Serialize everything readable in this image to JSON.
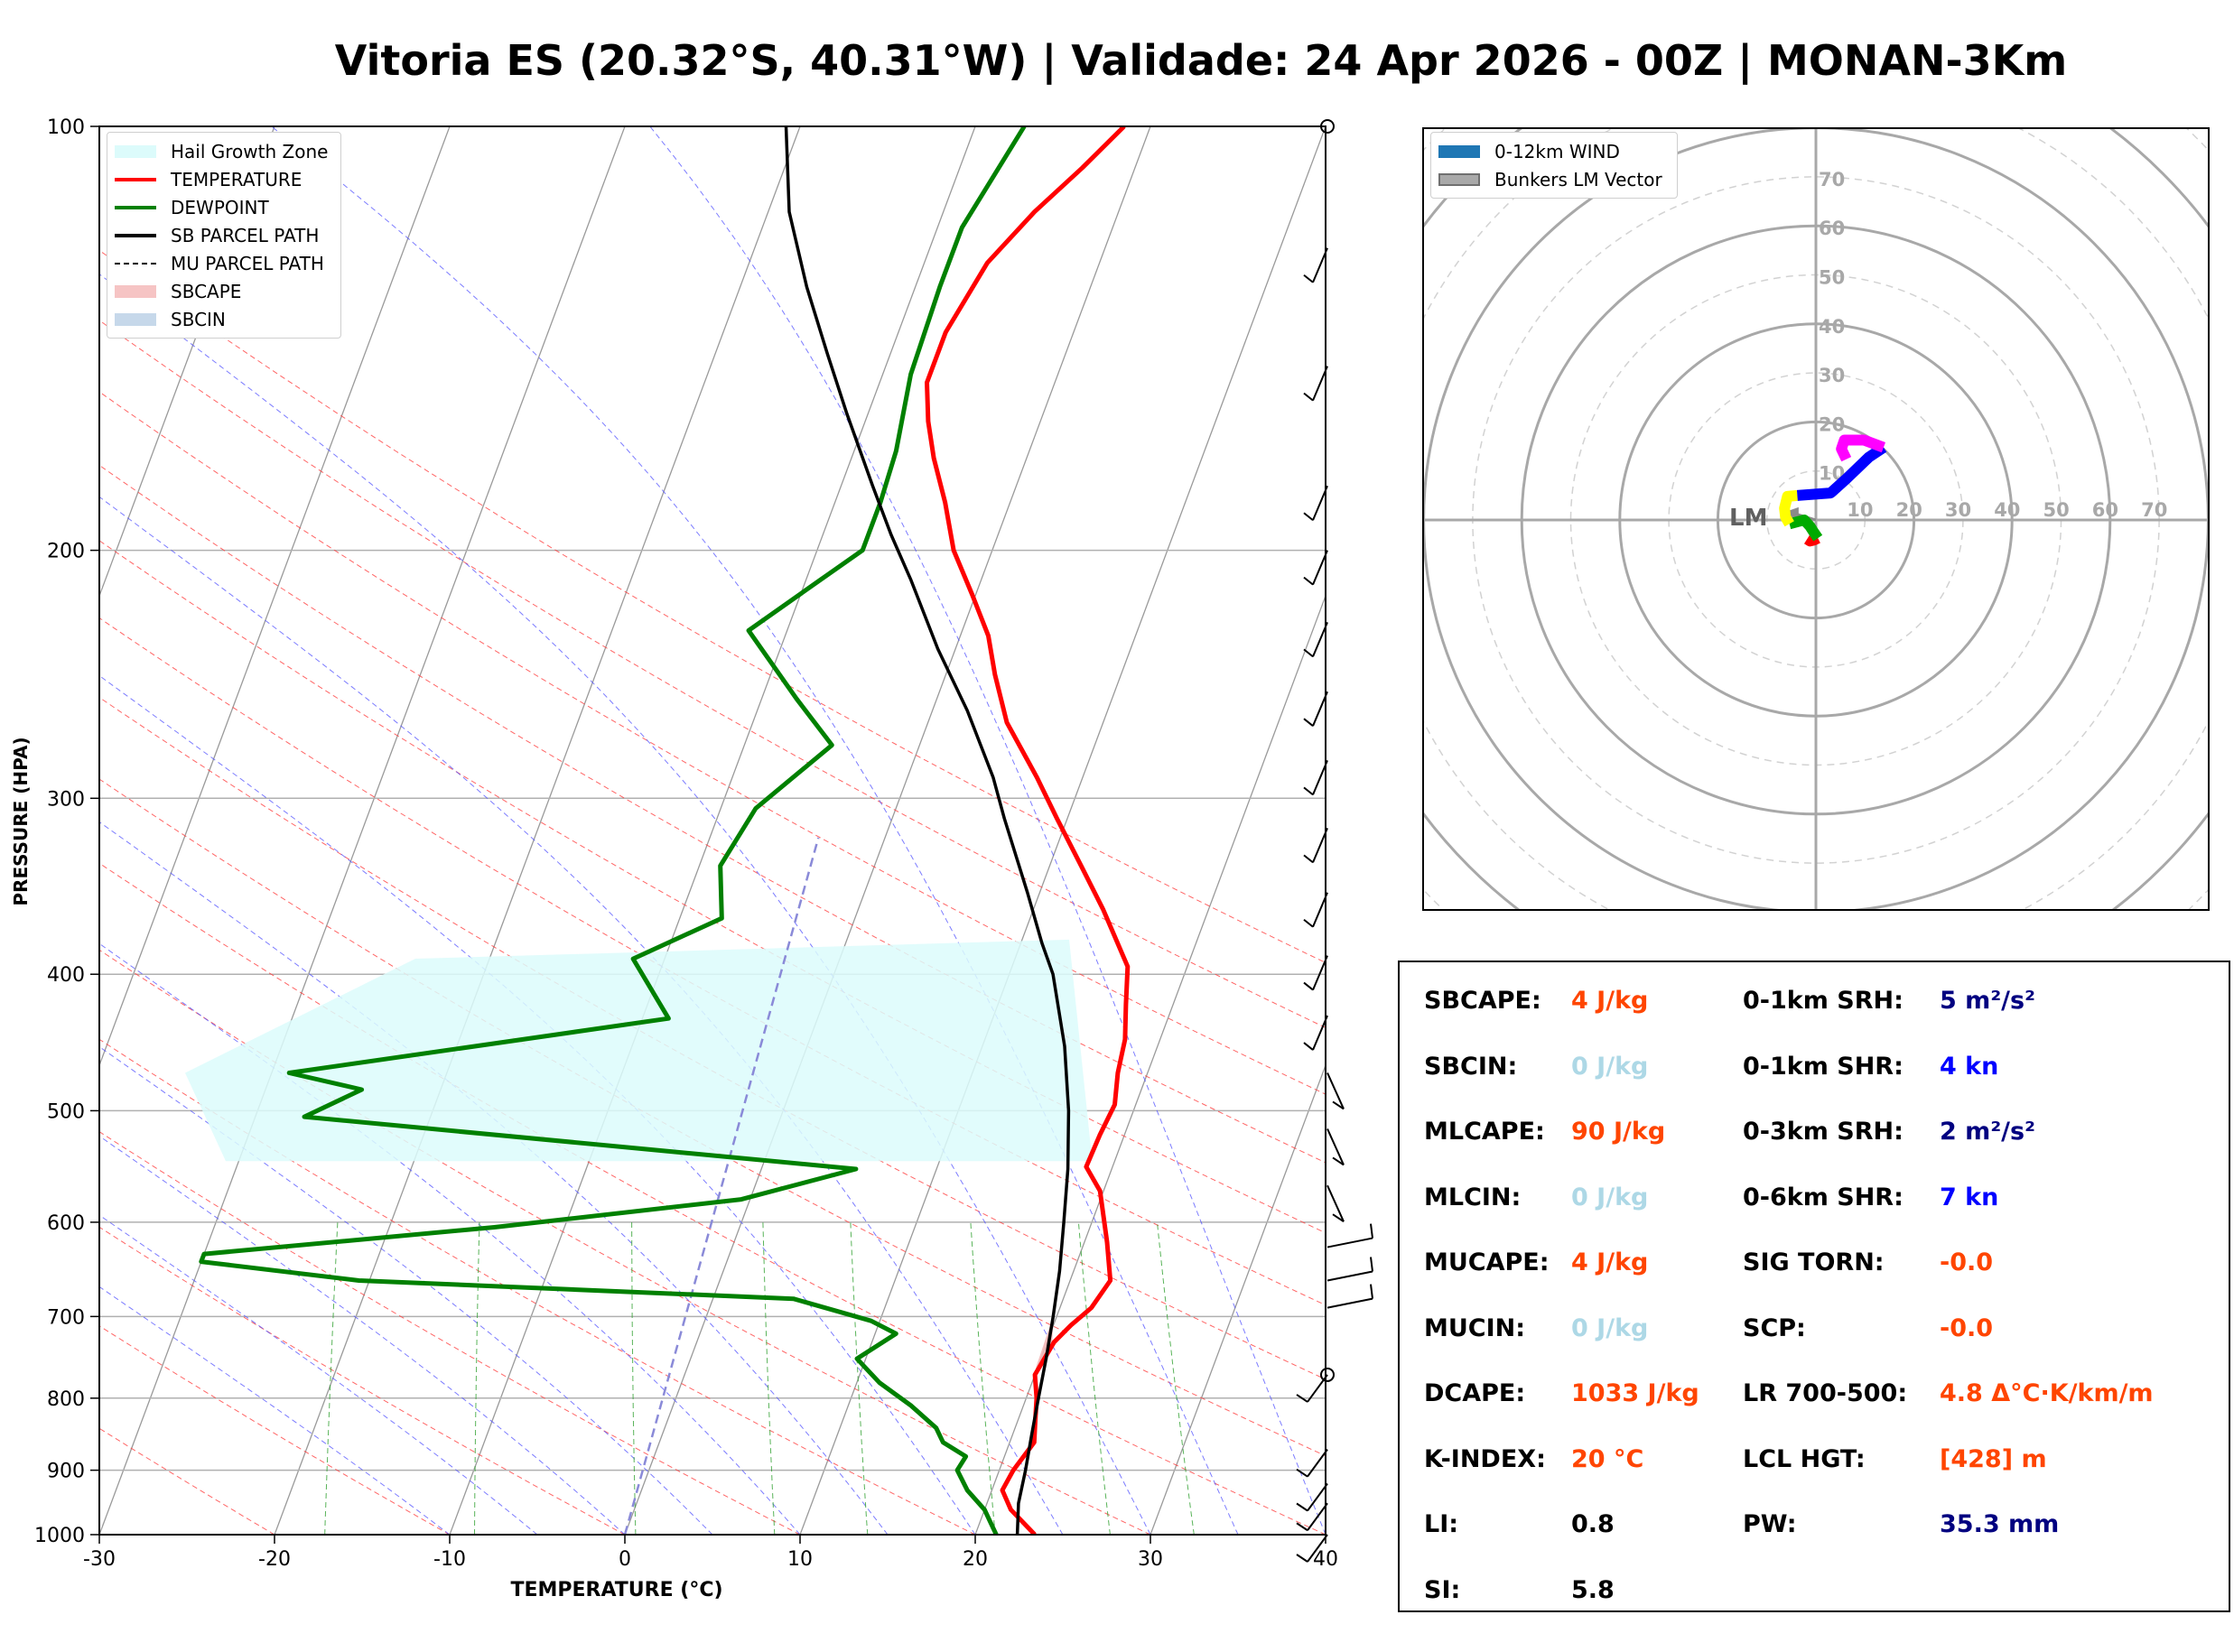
{
  "title": "Vitoria ES (20.32°S, 40.31°W) | Validade: 24 Apr 2026 - 00Z | MONAN-3Km",
  "skewt": {
    "xlabel": "TEMPERATURE (°C)",
    "ylabel": "PRESSURE (HPA)",
    "x_ticks": [
      -30,
      -20,
      -10,
      0,
      10,
      20,
      30,
      40
    ],
    "p_ticks": [
      100,
      200,
      300,
      400,
      500,
      600,
      700,
      800,
      900,
      1000
    ]
  },
  "skewt_legend": [
    {
      "label": "Hail Growth Zone",
      "color": "#dcfbfb",
      "kind": "patch"
    },
    {
      "label": "TEMPERATURE",
      "color": "#ff0000",
      "kind": "line"
    },
    {
      "label": "DEWPOINT",
      "color": "#008000",
      "kind": "line"
    },
    {
      "label": "SB PARCEL PATH",
      "color": "#000000",
      "kind": "line"
    },
    {
      "label": "MU PARCEL PATH",
      "color": "#000000",
      "kind": "dashed"
    },
    {
      "label": "SBCAPE",
      "color": "#f6c4c4",
      "kind": "patch"
    },
    {
      "label": "SBCIN",
      "color": "#c6d8ea",
      "kind": "patch"
    }
  ],
  "hodo_legend": [
    {
      "label": "0-12km WIND",
      "color": "#1f77b4",
      "kind": "patch"
    },
    {
      "label": "Bunkers LM Vector",
      "color": "#a9a9a9",
      "kind": "patch"
    }
  ],
  "hodograph": {
    "ring_labels": [
      "10",
      "20",
      "30",
      "40",
      "50",
      "60",
      "70"
    ],
    "lm_label": "LM"
  },
  "chart_data": {
    "type": "line",
    "title": "Vitoria ES (20.32°S, 40.31°W) | Validade: 24 Apr 2026 - 00Z | MONAN-3Km",
    "xlabel": "TEMPERATURE (°C)",
    "ylabel": "PRESSURE (HPA)",
    "xlim": [
      -30,
      40
    ],
    "ylim": [
      1000,
      100
    ],
    "y_scale": "log",
    "series": [
      {
        "name": "TEMPERATURE",
        "color": "#ff0000",
        "points": [
          [
            23.4,
            1000
          ],
          [
            21.5,
            960
          ],
          [
            20.6,
            930
          ],
          [
            20.8,
            900
          ],
          [
            21.4,
            860
          ],
          [
            21.0,
            830
          ],
          [
            20.6,
            800
          ],
          [
            20.0,
            770
          ],
          [
            20.4,
            730
          ],
          [
            21.0,
            710
          ],
          [
            21.8,
            690
          ],
          [
            22.3,
            660
          ],
          [
            21.3,
            620
          ],
          [
            19.8,
            570
          ],
          [
            18.5,
            548
          ],
          [
            18.6,
            520
          ],
          [
            18.8,
            495
          ],
          [
            18.3,
            470
          ],
          [
            18.0,
            445
          ],
          [
            17.3,
            420
          ],
          [
            16.6,
            395
          ],
          [
            14.0,
            360
          ],
          [
            11.8,
            335
          ],
          [
            9.4,
            310
          ],
          [
            7.4,
            290
          ],
          [
            4.5,
            265
          ],
          [
            2.8,
            245
          ],
          [
            1.6,
            230
          ],
          [
            -0.2,
            215
          ],
          [
            -2.2,
            200
          ],
          [
            -3.7,
            185
          ],
          [
            -5.3,
            172
          ],
          [
            -6.4,
            162
          ],
          [
            -7.3,
            152
          ],
          [
            -7.3,
            140
          ],
          [
            -6.4,
            125
          ],
          [
            -4.8,
            115
          ],
          [
            -3.0,
            107
          ],
          [
            -1.5,
            100
          ]
        ]
      },
      {
        "name": "DEWPOINT",
        "color": "#008000",
        "points": [
          [
            21.2,
            1000
          ],
          [
            20.0,
            960
          ],
          [
            18.6,
            930
          ],
          [
            17.6,
            900
          ],
          [
            17.8,
            880
          ],
          [
            16.2,
            860
          ],
          [
            15.5,
            840
          ],
          [
            13.6,
            810
          ],
          [
            11.3,
            780
          ],
          [
            9.5,
            750
          ],
          [
            11.2,
            720
          ],
          [
            9.5,
            705
          ],
          [
            4.6,
            680
          ],
          [
            -20.6,
            660
          ],
          [
            -30.0,
            640
          ],
          [
            -30.0,
            632
          ],
          [
            -14.0,
            605
          ],
          [
            -0.5,
            578
          ],
          [
            5.4,
            550
          ],
          [
            -27.2,
            505
          ],
          [
            -24.5,
            483
          ],
          [
            -29.0,
            470
          ],
          [
            -8.5,
            430
          ],
          [
            -11.8,
            390
          ],
          [
            -7.6,
            365
          ],
          [
            -8.8,
            335
          ],
          [
            -8.0,
            305
          ],
          [
            -5.0,
            275
          ],
          [
            -8.0,
            255
          ],
          [
            -12.2,
            228
          ],
          [
            -9.2,
            210
          ],
          [
            -7.4,
            200
          ],
          [
            -7.4,
            185
          ],
          [
            -7.6,
            170
          ],
          [
            -8.4,
            150
          ],
          [
            -8.6,
            130
          ],
          [
            -8.6,
            118
          ],
          [
            -7.2,
            100
          ]
        ]
      },
      {
        "name": "SB PARCEL PATH",
        "color": "#000000",
        "points": [
          [
            22.4,
            1000
          ],
          [
            21.8,
            950
          ],
          [
            21.5,
            900
          ],
          [
            21.1,
            850
          ],
          [
            20.7,
            800
          ],
          [
            20.3,
            750
          ],
          [
            19.8,
            700
          ],
          [
            19.2,
            650
          ],
          [
            18.4,
            600
          ],
          [
            17.5,
            550
          ],
          [
            16.3,
            500
          ],
          [
            14.7,
            450
          ],
          [
            12.5,
            400
          ],
          [
            11.2,
            380
          ],
          [
            9.3,
            350
          ],
          [
            6.4,
            310
          ],
          [
            4.9,
            290
          ],
          [
            2.0,
            260
          ],
          [
            -1.0,
            235
          ],
          [
            -4.0,
            210
          ],
          [
            -6.1,
            195
          ],
          [
            -8.2,
            180
          ],
          [
            -11.2,
            160
          ],
          [
            -13.6,
            145
          ],
          [
            -16.2,
            130
          ],
          [
            -18.8,
            115
          ],
          [
            -20.8,
            100
          ]
        ]
      }
    ],
    "hail_growth_zone": {
      "p_top": 378,
      "p_bottom": 543
    },
    "wind_barbs_p": [
      100,
      122,
      148,
      180,
      200,
      225,
      252,
      282,
      315,
      350,
      388,
      428,
      470,
      515,
      565,
      625,
      660,
      690,
      770,
      870,
      920,
      950,
      1000
    ],
    "hodograph": {
      "rings_kt": [
        10,
        20,
        30,
        40,
        50,
        60,
        70
      ],
      "segments": [
        {
          "color": "#ff0000",
          "points": [
            [
              -1.8,
              -3.9
            ],
            [
              -1.2,
              -4.3
            ],
            [
              -0.4,
              -4.1
            ],
            [
              0.4,
              -3.7
            ]
          ]
        },
        {
          "color": "#00aa00",
          "points": [
            [
              0.4,
              -3.7
            ],
            [
              -0.5,
              -2.4
            ],
            [
              -1.2,
              -1.3
            ],
            [
              -2.4,
              0.0
            ],
            [
              -5.4,
              -0.8
            ]
          ]
        },
        {
          "color": "#ffff00",
          "points": [
            [
              -5.4,
              -0.8
            ],
            [
              -6.2,
              0.6
            ],
            [
              -6.4,
              2.4
            ],
            [
              -5.8,
              4.8
            ],
            [
              -3.8,
              5.0
            ]
          ]
        },
        {
          "color": "#0000ff",
          "points": [
            [
              -3.8,
              5.0
            ],
            [
              3.0,
              5.5
            ],
            [
              6.2,
              8.4
            ],
            [
              10.8,
              12.8
            ],
            [
              13.8,
              14.8
            ]
          ]
        },
        {
          "color": "#ff00ff",
          "points": [
            [
              13.8,
              14.8
            ],
            [
              9.8,
              16.3
            ],
            [
              5.8,
              16.3
            ],
            [
              5.2,
              14.5
            ],
            [
              6.2,
              12.4
            ]
          ]
        }
      ],
      "bunkers_lm_kt": [
        -5.0,
        1.5
      ]
    }
  },
  "indices": {
    "left": [
      {
        "label": "SBCAPE:",
        "value": "4 J/kg",
        "color": "#ff4500"
      },
      {
        "label": "SBCIN:",
        "value": "0 J/kg",
        "color": "#add8e6"
      },
      {
        "label": "MLCAPE:",
        "value": "90 J/kg",
        "color": "#ff4500"
      },
      {
        "label": "MLCIN:",
        "value": "0 J/kg",
        "color": "#add8e6"
      },
      {
        "label": "MUCAPE:",
        "value": "4 J/kg",
        "color": "#ff4500"
      },
      {
        "label": "MUCIN:",
        "value": "0 J/kg",
        "color": "#add8e6"
      },
      {
        "label": "DCAPE:",
        "value": "1033 J/kg",
        "color": "#ff4500"
      },
      {
        "label": "K-INDEX:",
        "value": "20 °C",
        "color": "#ff4500"
      },
      {
        "label": "LI:",
        "value": "0.8",
        "color": "#000000"
      },
      {
        "label": "SI:",
        "value": "5.8",
        "color": "#000000"
      }
    ],
    "right": [
      {
        "label": "0-1km SRH:",
        "value": "5 m²/s²",
        "color": "#000080"
      },
      {
        "label": "0-1km SHR:",
        "value": "4 kn",
        "color": "#0000ff"
      },
      {
        "label": "0-3km SRH:",
        "value": "2 m²/s²",
        "color": "#000080"
      },
      {
        "label": "0-6km SHR:",
        "value": "7 kn",
        "color": "#0000ff"
      },
      {
        "label": "SIG TORN:",
        "value": "-0.0",
        "color": "#ff4500"
      },
      {
        "label": "SCP:",
        "value": "-0.0",
        "color": "#ff4500"
      },
      {
        "label": "LR 700-500:",
        "value": "4.8 Δ°C·K/km/m",
        "color": "#ff4500"
      },
      {
        "label": "LCL HGT:",
        "value": "[428] m",
        "color": "#ff4500"
      },
      {
        "label": "PW:",
        "value": "35.3 mm",
        "color": "#000080"
      }
    ]
  }
}
